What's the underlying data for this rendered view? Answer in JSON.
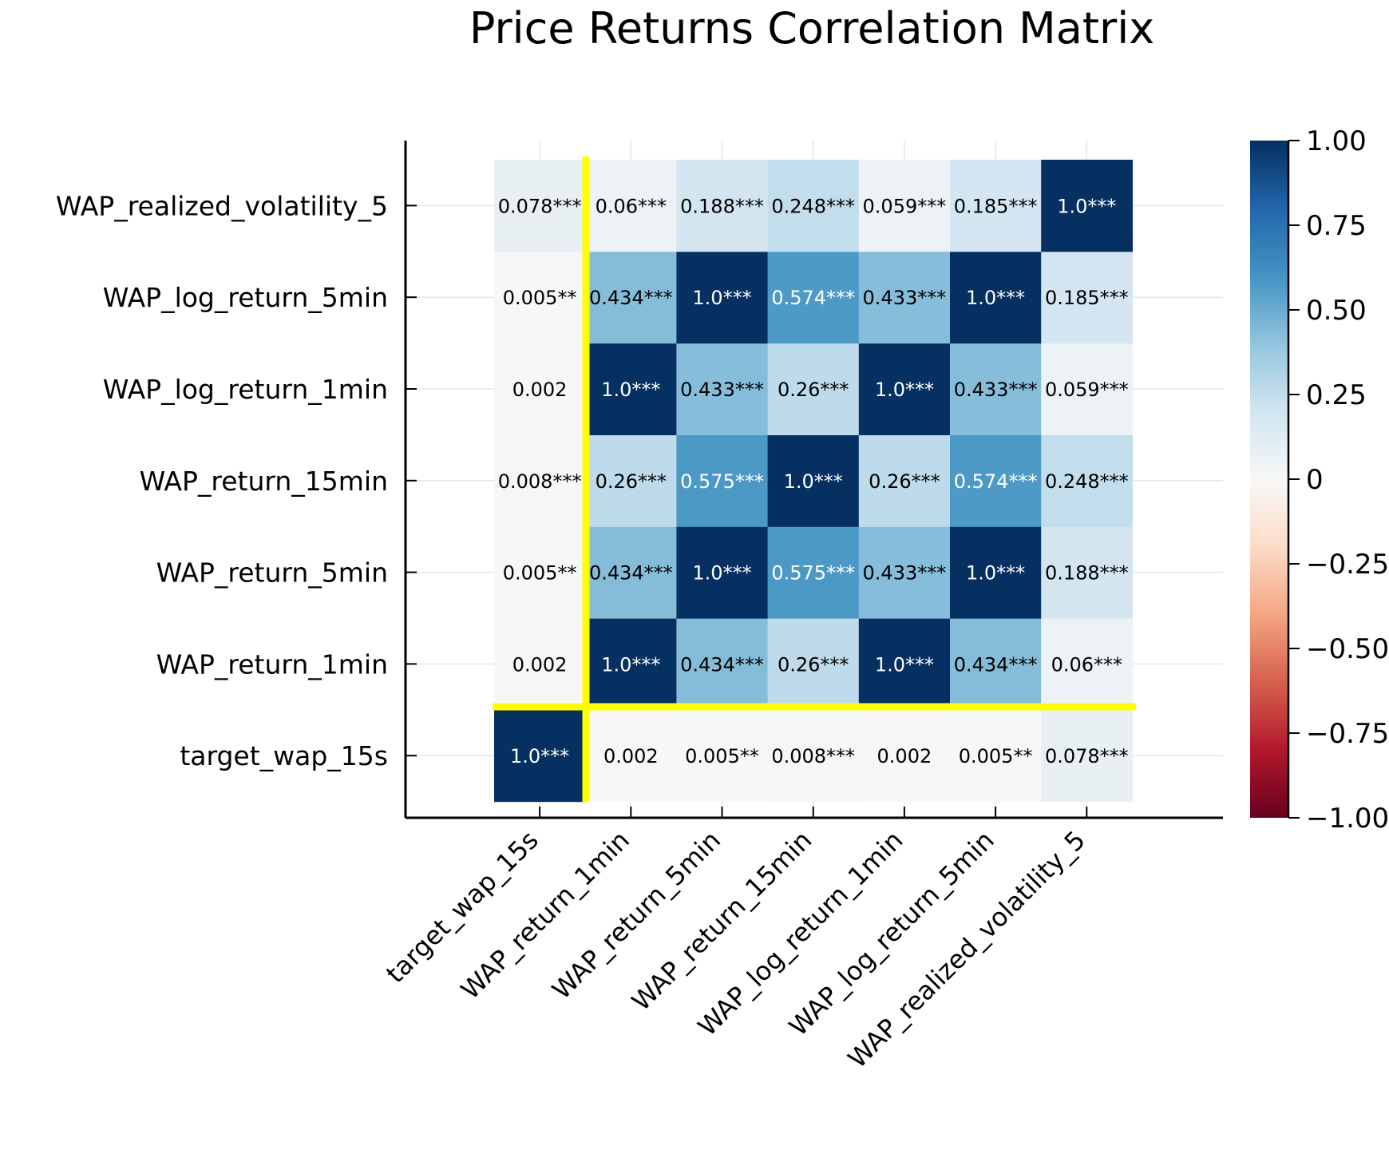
{
  "chart_data": {
    "type": "heatmap",
    "title": "Price Returns Correlation Matrix",
    "xlabel": "",
    "ylabel": "",
    "variables": [
      "target_wap_15s",
      "WAP_return_1min",
      "WAP_return_5min",
      "WAP_return_15min",
      "WAP_log_return_1min",
      "WAP_log_return_5min",
      "WAP_realized_volatility_5"
    ],
    "values": [
      [
        1.0,
        0.002,
        0.005,
        0.008,
        0.002,
        0.005,
        0.078
      ],
      [
        0.002,
        1.0,
        0.434,
        0.26,
        1.0,
        0.434,
        0.06
      ],
      [
        0.005,
        0.434,
        1.0,
        0.575,
        0.433,
        1.0,
        0.188
      ],
      [
        0.008,
        0.26,
        0.575,
        1.0,
        0.26,
        0.574,
        0.248
      ],
      [
        0.002,
        1.0,
        0.433,
        0.26,
        1.0,
        0.433,
        0.059
      ],
      [
        0.005,
        0.434,
        1.0,
        0.574,
        0.433,
        1.0,
        0.185
      ],
      [
        0.078,
        0.06,
        0.188,
        0.248,
        0.059,
        0.185,
        1.0
      ]
    ],
    "cell_labels": [
      [
        "1.0***",
        "0.002",
        "0.005**",
        "0.008***",
        "0.002",
        "0.005**",
        "0.078***"
      ],
      [
        "0.002",
        "1.0***",
        "0.434***",
        "0.26***",
        "1.0***",
        "0.434***",
        "0.06***"
      ],
      [
        "0.005**",
        "0.434***",
        "1.0***",
        "0.575***",
        "0.433***",
        "1.0***",
        "0.188***"
      ],
      [
        "0.008***",
        "0.26***",
        "0.575***",
        "1.0***",
        "0.26***",
        "0.574***",
        "0.248***"
      ],
      [
        "0.002",
        "1.0***",
        "0.433***",
        "0.26***",
        "1.0***",
        "0.433***",
        "0.059***"
      ],
      [
        "0.005**",
        "0.434***",
        "1.0***",
        "0.574***",
        "0.433***",
        "1.0***",
        "0.185***"
      ],
      [
        "0.078***",
        "0.06***",
        "0.188***",
        "0.248***",
        "0.059***",
        "0.185***",
        "1.0***"
      ]
    ],
    "colorbar": {
      "range": [
        -1,
        1
      ],
      "ticks": [
        1.0,
        0.75,
        0.5,
        0.25,
        0,
        -0.25,
        -0.5,
        -0.75,
        -1.0
      ],
      "tick_labels": [
        "1.00",
        "0.75",
        "0.50",
        "0.25",
        "0",
        "−0.25",
        "−0.50",
        "−0.75",
        "−1.00"
      ],
      "colormap": "RdBu",
      "stops": [
        "#67001f",
        "#b2182b",
        "#d6604d",
        "#f4a582",
        "#fddbc7",
        "#f7f7f7",
        "#d1e5f0",
        "#92c5de",
        "#4393c3",
        "#2166ac",
        "#053061"
      ]
    },
    "highlight_color": "#ffff00",
    "grid": true
  }
}
